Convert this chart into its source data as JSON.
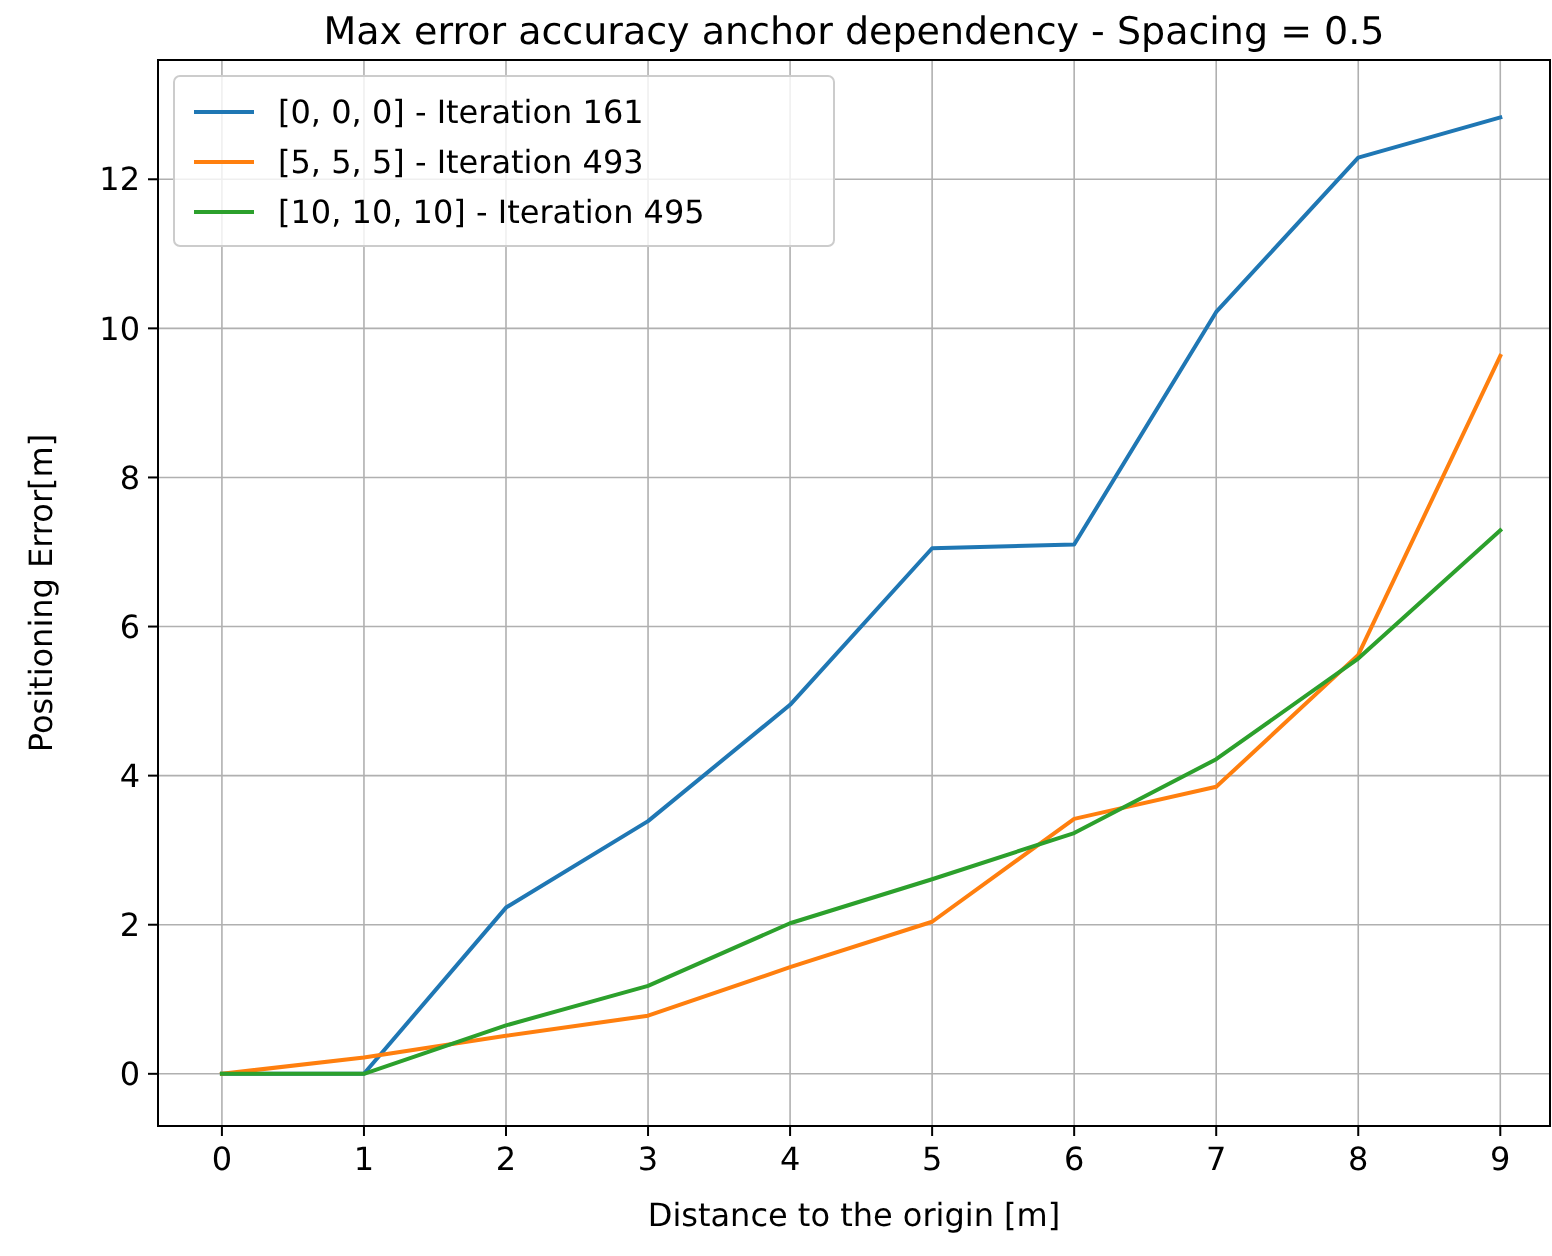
{
  "chart_data": {
    "type": "line",
    "title": "Max error accuracy anchor dependency - Spacing = 0.5",
    "xlabel": "Distance to the origin [m]",
    "ylabel": "Positioning Error[m]",
    "x": [
      0,
      1,
      2,
      3,
      4,
      5,
      6,
      7,
      8,
      9
    ],
    "series": [
      {
        "name": "[0, 0, 0] - Iteration 161",
        "color": "#1f77b4",
        "values": [
          0,
          0,
          2.23,
          3.39,
          4.95,
          7.05,
          7.1,
          10.22,
          12.29,
          12.83
        ]
      },
      {
        "name": "[5, 5, 5] - Iteration 493",
        "color": "#ff7f0e",
        "values": [
          0,
          0.22,
          0.51,
          0.78,
          1.43,
          2.04,
          3.42,
          3.85,
          5.62,
          9.63
        ]
      },
      {
        "name": "[10, 10, 10] - Iteration 495",
        "color": "#2ca02c",
        "values": [
          0,
          0,
          0.65,
          1.18,
          2.02,
          2.61,
          3.23,
          4.22,
          5.57,
          7.29
        ]
      }
    ],
    "xlim": [
      -0.45,
      9.35
    ],
    "ylim": [
      -0.7,
      13.6
    ],
    "xticks": [
      0,
      1,
      2,
      3,
      4,
      5,
      6,
      7,
      8,
      9
    ],
    "yticks": [
      0,
      2,
      4,
      6,
      8,
      10,
      12
    ],
    "grid": true,
    "legend": "top left",
    "marker": "none",
    "line_style": "solid"
  }
}
